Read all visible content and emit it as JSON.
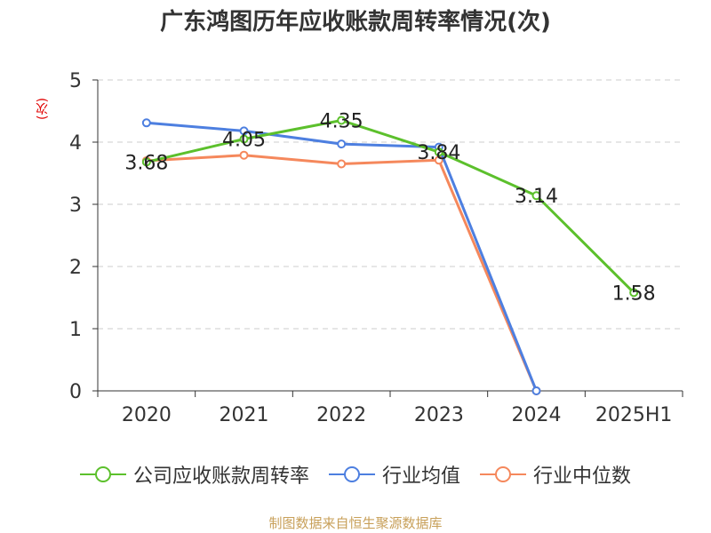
{
  "chart_data": {
    "type": "line",
    "title": "广东鸿图历年应收账款周转率情况(次)",
    "ylabel": "(次)",
    "xlabel": "",
    "categories": [
      "2020",
      "2021",
      "2022",
      "2023",
      "2024",
      "2025H1"
    ],
    "ylim": [
      0,
      5
    ],
    "yticks": [
      "0",
      "1",
      "2",
      "3",
      "4",
      "5"
    ],
    "grid": true,
    "legend_position": "bottom",
    "series": [
      {
        "name": "公司应收账款周转率",
        "color": "#5cc02c",
        "values": [
          3.68,
          4.05,
          4.35,
          3.84,
          3.14,
          1.58
        ],
        "data_labels": [
          "3.68",
          "4.05",
          "4.35",
          "3.84",
          "3.14",
          "1.58"
        ]
      },
      {
        "name": "行业均值",
        "color": "#4d7fe0",
        "values": [
          4.31,
          4.18,
          3.97,
          3.92,
          0,
          null
        ]
      },
      {
        "name": "行业中位数",
        "color": "#f5885c",
        "values": [
          3.7,
          3.79,
          3.65,
          3.71,
          0,
          null
        ]
      }
    ]
  },
  "source": "制图数据来自恒生聚源数据库"
}
